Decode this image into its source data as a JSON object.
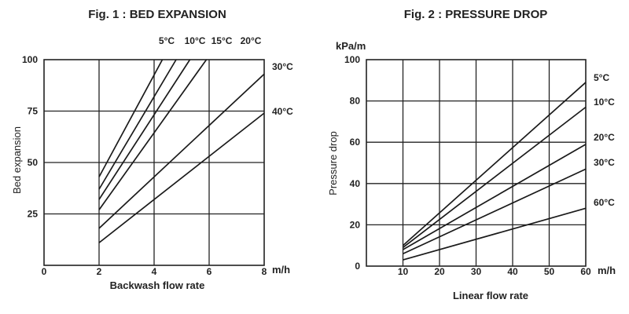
{
  "chart_data": [
    {
      "type": "line",
      "title": "Fig. 1 : BED EXPANSION",
      "xlabel": "Backwash flow rate",
      "ylabel": "Bed expansion",
      "x_unit": "m/h",
      "xlim": [
        0,
        8
      ],
      "ylim": [
        0,
        100
      ],
      "x_ticks": [
        0,
        2,
        4,
        6,
        8
      ],
      "y_ticks": [
        0,
        25,
        50,
        75,
        100
      ],
      "grid": true,
      "series": [
        {
          "name": "5°C",
          "x": [
            2,
            4.3
          ],
          "y": [
            43,
            100
          ]
        },
        {
          "name": "10°C",
          "x": [
            2,
            4.8
          ],
          "y": [
            37,
            100
          ]
        },
        {
          "name": "15°C",
          "x": [
            2,
            5.3
          ],
          "y": [
            32,
            100
          ]
        },
        {
          "name": "20°C",
          "x": [
            2,
            5.9
          ],
          "y": [
            27,
            100
          ]
        },
        {
          "name": "30°C",
          "x": [
            2,
            8
          ],
          "y": [
            18,
            93
          ]
        },
        {
          "name": "40°C",
          "x": [
            2,
            8
          ],
          "y": [
            11,
            74
          ]
        }
      ]
    },
    {
      "type": "line",
      "title": "Fig. 2 : PRESSURE DROP",
      "xlabel": "Linear flow rate",
      "ylabel": "Pressure drop",
      "x_unit": "m/h",
      "y_unit": "kPa/m",
      "xlim": [
        0,
        60
      ],
      "ylim": [
        0,
        100
      ],
      "x_ticks": [
        10,
        20,
        30,
        40,
        50,
        60
      ],
      "y_ticks": [
        0,
        20,
        40,
        60,
        80,
        100
      ],
      "grid": true,
      "series": [
        {
          "name": "5°C",
          "x": [
            10,
            60
          ],
          "y": [
            10,
            89
          ]
        },
        {
          "name": "10°C",
          "x": [
            10,
            60
          ],
          "y": [
            9,
            77
          ]
        },
        {
          "name": "20°C",
          "x": [
            10,
            60
          ],
          "y": [
            8,
            59
          ]
        },
        {
          "name": "30°C",
          "x": [
            10,
            60
          ],
          "y": [
            6,
            47
          ]
        },
        {
          "name": "60°C",
          "x": [
            10,
            60
          ],
          "y": [
            3,
            28
          ]
        }
      ]
    }
  ]
}
